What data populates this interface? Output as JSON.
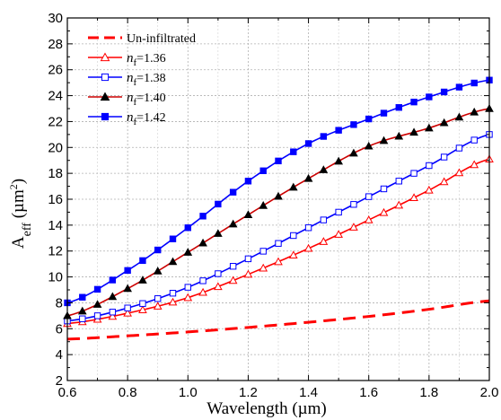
{
  "chart_data": {
    "type": "line",
    "title": "",
    "xlabel": "Wavelength (µm)",
    "ylabel": {
      "main": "A",
      "sub": "eff",
      "units": " (µm",
      "sup": "2",
      "close": ")"
    },
    "xlim": [
      0.6,
      2.0
    ],
    "ylim": [
      2,
      30
    ],
    "xticks": [
      "0.6",
      "0.8",
      "1.0",
      "1.2",
      "1.4",
      "1.6",
      "1.8",
      "2.0"
    ],
    "yticks": [
      "2",
      "4",
      "6",
      "8",
      "10",
      "12",
      "14",
      "16",
      "18",
      "20",
      "22",
      "24",
      "26",
      "28",
      "30"
    ],
    "grid": true,
    "legend_position": "top-left",
    "x": [
      0.6,
      0.8,
      1.0,
      1.2,
      1.4,
      1.6,
      1.8,
      2.0
    ],
    "series": [
      {
        "name": "Un-infiltrated",
        "symbol": "",
        "sub": "",
        "value": "",
        "color": "#ff0000",
        "marker": "none",
        "dash": true,
        "values": [
          5.2,
          5.45,
          5.75,
          6.1,
          6.5,
          6.95,
          7.5,
          8.15
        ]
      },
      {
        "name": "",
        "symbol": "n",
        "sub": "f",
        "value": "=1.36",
        "color": "#ff0000",
        "marker": "triangle-open",
        "values": [
          6.4,
          7.2,
          8.4,
          10.2,
          12.2,
          14.4,
          16.7,
          19.1
        ]
      },
      {
        "name": "",
        "symbol": "n",
        "sub": "f",
        "value": "=1.38",
        "color": "#0000ff",
        "marker": "square-open",
        "values": [
          6.6,
          7.6,
          9.2,
          11.4,
          13.8,
          16.2,
          18.6,
          21.0
        ]
      },
      {
        "name": "",
        "symbol": "n",
        "sub": "f",
        "value": "=1.40",
        "color": "#cc0000",
        "marker": "triangle-filled",
        "values": [
          7.0,
          9.1,
          11.9,
          14.8,
          17.6,
          20.1,
          21.5,
          23.0
        ]
      },
      {
        "name": "",
        "symbol": "n",
        "sub": "f",
        "value": "=1.42",
        "color": "#0000ff",
        "marker": "square-filled",
        "values": [
          8.0,
          10.5,
          13.8,
          17.4,
          20.3,
          22.2,
          23.9,
          25.2
        ]
      }
    ]
  }
}
